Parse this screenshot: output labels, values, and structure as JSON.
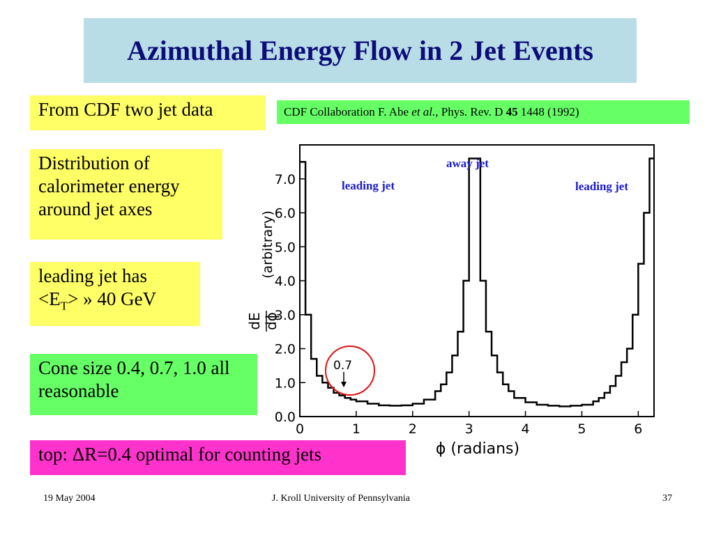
{
  "slide": {
    "title": "Azimuthal Energy Flow in 2 Jet Events",
    "source_note": "From CDF two jet data",
    "reference": {
      "pre": "CDF Collaboration F. Abe ",
      "italic": "et al.,",
      "mid": " Phys. Rev. D ",
      "bold": "45",
      "post": " 1448 (1992)"
    },
    "note_distribution": "Distribution of calorimeter energy around jet axes",
    "note_et": {
      "line1": "leading jet has",
      "lt": "<E",
      "sub": "T",
      "rest": "> » 40 GeV"
    },
    "note_cone": "Cone size 0.4, 0.7, 1.0 all reasonable",
    "note_top": "top: ΔR=0.4 optimal for counting jets"
  },
  "footer": {
    "date": "19 May 2004",
    "author": "J. Kroll University of Pennsylvania",
    "page": "37"
  },
  "colors": {
    "title_bg": "#b9dde6",
    "title_text": "#0d0d7a",
    "yellow": "#ffff66",
    "green": "#66ff66",
    "magenta": "#ff33cc",
    "label_blue": "#1a1acc",
    "circle": "#dd1111"
  },
  "chart_data": {
    "type": "line",
    "xlabel": "ϕ  (radians)",
    "ylabel": "dE/dϕ  (arbitrary)",
    "xlim": [
      0,
      6.28
    ],
    "ylim": [
      0,
      8
    ],
    "xticks": [
      0,
      1,
      2,
      3,
      4,
      5,
      6
    ],
    "yticks": [
      0,
      1,
      2,
      3,
      4,
      5,
      6,
      7
    ],
    "ytick_labels": [
      "0.0",
      "1.0",
      "2.0",
      "3.0",
      "4.0",
      "5.0",
      "6.0",
      "7.0"
    ],
    "annotations": {
      "leading_left": "leading jet",
      "away": "away jet",
      "leading_right": "leading jet",
      "cone": "0.7"
    },
    "series": [
      {
        "x": [
          0.0,
          0.1,
          0.2,
          0.3,
          0.4,
          0.5,
          0.6,
          0.7,
          0.8,
          0.9,
          1.0,
          1.2,
          1.4,
          1.6,
          1.8,
          2.0,
          2.2,
          2.4,
          2.5,
          2.6,
          2.7,
          2.8,
          2.9,
          3.0,
          3.1,
          3.2,
          3.3,
          3.4,
          3.5,
          3.6,
          3.7,
          3.8,
          4.0,
          4.2,
          4.4,
          4.6,
          4.8,
          5.0,
          5.2,
          5.3,
          5.4,
          5.5,
          5.6,
          5.7,
          5.8,
          5.9,
          6.0,
          6.1,
          6.2,
          6.28
        ],
        "y": [
          7.5,
          3.0,
          1.7,
          1.2,
          1.0,
          0.85,
          0.7,
          0.62,
          0.55,
          0.5,
          0.45,
          0.38,
          0.33,
          0.32,
          0.33,
          0.38,
          0.5,
          0.75,
          0.95,
          1.3,
          1.8,
          2.5,
          4.0,
          7.6,
          7.6,
          4.0,
          2.5,
          1.8,
          1.3,
          0.95,
          0.75,
          0.55,
          0.42,
          0.35,
          0.32,
          0.3,
          0.32,
          0.35,
          0.45,
          0.55,
          0.7,
          0.9,
          1.2,
          1.6,
          2.0,
          3.0,
          4.5,
          6.0,
          7.6,
          7.6
        ]
      }
    ]
  }
}
